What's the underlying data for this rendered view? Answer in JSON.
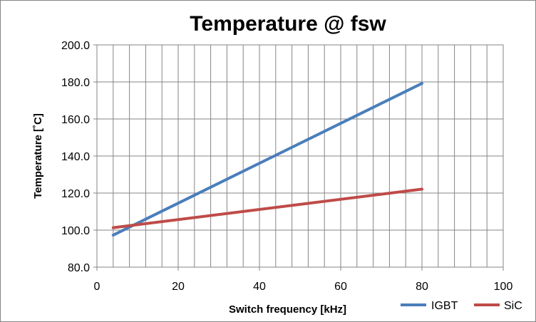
{
  "chart_data": {
    "type": "line",
    "title": "Temperature @ fsw",
    "xlabel": "Switch frequency [kHz]",
    "ylabel": "Temperature [˚C]",
    "xlim": [
      0,
      100
    ],
    "ylim": [
      80,
      200
    ],
    "x_ticks": [
      "0",
      "20",
      "40",
      "60",
      "80",
      "100"
    ],
    "y_ticks": [
      "80.0",
      "100.0",
      "120.0",
      "140.0",
      "160.0",
      "180.0",
      "200.0"
    ],
    "grid": true,
    "legend_position": "bottom-right",
    "series": [
      {
        "name": "IGBT",
        "color": "#4a7ebb",
        "x": [
          4,
          80
        ],
        "y": [
          97.3,
          179.2
        ]
      },
      {
        "name": "SiC",
        "color": "#be4b48",
        "x": [
          4,
          80
        ],
        "y": [
          101.3,
          122.1
        ]
      }
    ]
  }
}
